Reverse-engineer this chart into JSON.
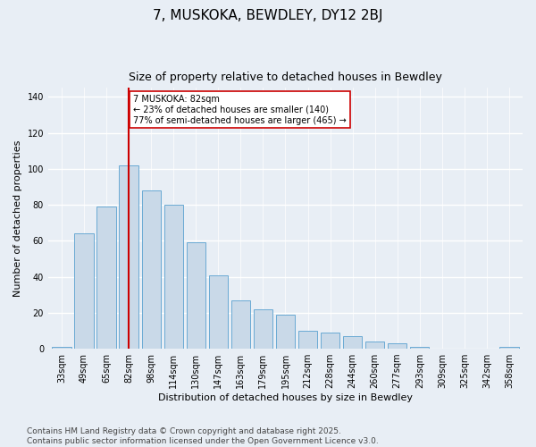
{
  "title": "7, MUSKOKA, BEWDLEY, DY12 2BJ",
  "subtitle": "Size of property relative to detached houses in Bewdley",
  "xlabel": "Distribution of detached houses by size in Bewdley",
  "ylabel": "Number of detached properties",
  "bar_labels": [
    "33sqm",
    "49sqm",
    "65sqm",
    "82sqm",
    "98sqm",
    "114sqm",
    "130sqm",
    "147sqm",
    "163sqm",
    "179sqm",
    "195sqm",
    "212sqm",
    "228sqm",
    "244sqm",
    "260sqm",
    "277sqm",
    "293sqm",
    "309sqm",
    "325sqm",
    "342sqm",
    "358sqm"
  ],
  "bar_values": [
    1,
    64,
    79,
    102,
    88,
    80,
    59,
    41,
    27,
    22,
    19,
    10,
    9,
    7,
    4,
    3,
    1,
    0,
    0,
    0,
    1
  ],
  "bar_color": "#c9d9e8",
  "bar_edgecolor": "#6aaad4",
  "vline_x": 3,
  "vline_color": "#cc0000",
  "annotation_text": "7 MUSKOKA: 82sqm\n← 23% of detached houses are smaller (140)\n77% of semi-detached houses are larger (465) →",
  "annotation_box_color": "#ffffff",
  "annotation_box_edgecolor": "#cc0000",
  "ylim": [
    0,
    145
  ],
  "yticks": [
    0,
    20,
    40,
    60,
    80,
    100,
    120,
    140
  ],
  "footnote": "Contains HM Land Registry data © Crown copyright and database right 2025.\nContains public sector information licensed under the Open Government Licence v3.0.",
  "background_color": "#e8eef5",
  "grid_color": "#ffffff",
  "title_fontsize": 11,
  "subtitle_fontsize": 9,
  "axis_label_fontsize": 8,
  "tick_fontsize": 7,
  "footnote_fontsize": 6.5
}
